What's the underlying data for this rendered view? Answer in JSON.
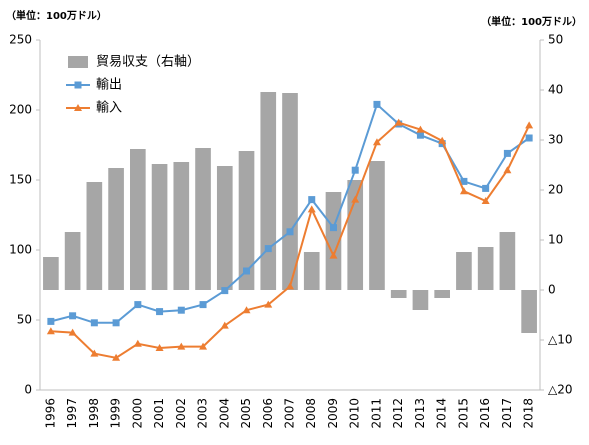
{
  "chart_data": {
    "type": "bar",
    "y_unit_label": "（単位：100万ドル）",
    "y2_unit_label": "（単位：100万ドル）",
    "categories": [
      "1996",
      "1997",
      "1998",
      "1999",
      "2000",
      "2001",
      "2002",
      "2003",
      "2004",
      "2005",
      "2006",
      "2007",
      "2008",
      "2009",
      "2010",
      "2011",
      "2012",
      "2013",
      "2014",
      "2015",
      "2016",
      "2017",
      "2018"
    ],
    "series": [
      {
        "name": "貿易収支（右軸）",
        "type": "bar",
        "axis": "y2",
        "color": "#a6a6a6",
        "values": [
          6.6,
          11.6,
          21.6,
          24.4,
          28.2,
          25.2,
          25.6,
          28.4,
          24.8,
          27.8,
          39.6,
          39.4,
          7.6,
          19.6,
          22,
          25.8,
          -1.6,
          -4,
          -1.6,
          7.6,
          8.6,
          11.6,
          -8.6
        ]
      },
      {
        "name": "輸出",
        "type": "line",
        "marker": "square",
        "color": "#5b9bd5",
        "values": [
          49,
          53,
          48,
          48,
          61,
          56,
          57,
          61,
          71,
          85,
          101,
          113,
          136,
          116,
          157,
          204,
          190,
          182,
          176,
          149,
          144,
          169,
          180
        ]
      },
      {
        "name": "輸入",
        "type": "line",
        "marker": "triangle",
        "color": "#ed7d31",
        "values": [
          42,
          41,
          26,
          23,
          33,
          30,
          31,
          31,
          46,
          57,
          61,
          74,
          129,
          96,
          136,
          177,
          191,
          186,
          178,
          142,
          135,
          157,
          189
        ]
      }
    ],
    "ylim": [
      0,
      250
    ],
    "yticks": [
      0,
      50,
      100,
      150,
      200,
      250
    ],
    "y2lim": [
      -20,
      50
    ],
    "y2ticks": [
      {
        "value": -20,
        "label": "△20"
      },
      {
        "value": -10,
        "label": "△10"
      },
      0,
      10,
      20,
      30,
      40,
      50
    ],
    "legend": "top-left"
  }
}
